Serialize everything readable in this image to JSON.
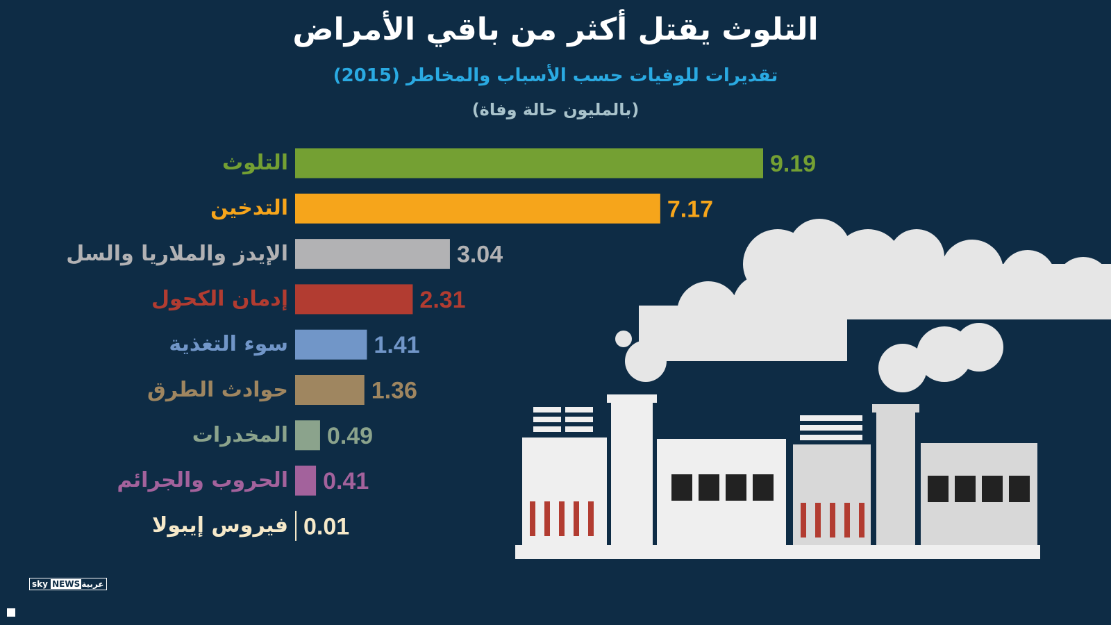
{
  "title": "التلوث يقتل أكثر من باقي الأمراض",
  "subtitle": "تقديرات للوفيات حسب الأسباب والمخاطر (2015)",
  "unit_label": "(بالمليون حالة وفاة)",
  "logo": {
    "sky": "sky",
    "news": "NEWS",
    "arabic": "عربية"
  },
  "chart_data": {
    "type": "bar",
    "orientation": "horizontal",
    "title": "التلوث يقتل أكثر من باقي الأمراض",
    "subtitle": "تقديرات للوفيات حسب الأسباب والمخاطر (2015)",
    "unit": "(بالمليون حالة وفاة)",
    "categories": [
      "التلوث",
      "التدخين",
      "الإيدز والملاريا والسل",
      "إدمان الكحول",
      "سوء التغذية",
      "حوادث الطرق",
      "المخدرات",
      "الحروب والجرائم",
      "فيروس إيبولا"
    ],
    "values": [
      9.19,
      7.17,
      3.04,
      2.31,
      1.41,
      1.36,
      0.49,
      0.41,
      0.01
    ],
    "value_labels": [
      "9.19",
      "7.17",
      "3.04",
      "2.31",
      "1.41",
      "1.36",
      "0.49",
      "0.41",
      "0.01"
    ],
    "colors": [
      "#74a033",
      "#f6a51b",
      "#b2b2b4",
      "#b23c31",
      "#7196c8",
      "#9f8660",
      "#8ba38c",
      "#a3629c",
      "#f6e9c9"
    ],
    "xlim": [
      0,
      9.19
    ],
    "grid": false,
    "legend": "none"
  }
}
